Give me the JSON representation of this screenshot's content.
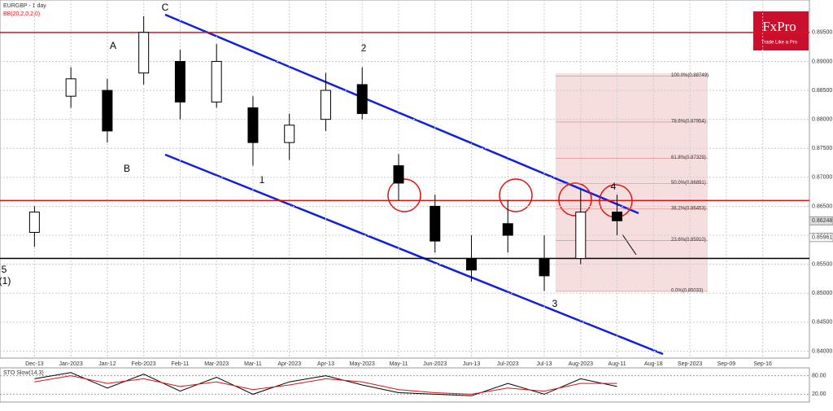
{
  "chart_data": {
    "type": "candlestick",
    "title": "EURGBP - 1 day",
    "subtitle": "BB(20,2,0,2,0)",
    "logo": "FxPro",
    "tagline": "Trade Like a Pro",
    "categories": [
      "Dec-13",
      "Jan-2023",
      "Jan-12",
      "Feb-2023",
      "Feb-11",
      "Mar-2023",
      "Mar-11",
      "Apr-2023",
      "Apr-13",
      "May-2023",
      "May-11",
      "Jun-2023",
      "Jun-13",
      "Jul-2023",
      "Jul-13",
      "Aug-2023",
      "Aug-11",
      "Aug-18",
      "Sep-2023",
      "Sep-09",
      "Sep-16"
    ],
    "series": [
      {
        "name": "EURGBP",
        "color": "#000000",
        "open": [
          0.8605,
          0.884,
          0.885,
          0.888,
          0.89,
          0.883,
          0.882,
          0.876,
          0.88,
          0.886,
          0.872,
          0.865,
          0.856,
          0.862,
          0.856,
          0.856,
          0.864,
          null,
          null,
          null,
          null
        ],
        "high": [
          0.865,
          0.889,
          0.887,
          0.8978,
          0.892,
          0.893,
          0.884,
          0.881,
          0.888,
          0.889,
          0.874,
          0.867,
          0.86,
          0.866,
          0.86,
          0.868,
          0.867,
          null,
          null,
          null,
          null
        ],
        "low": [
          0.858,
          0.882,
          0.876,
          0.886,
          0.88,
          0.882,
          0.872,
          0.873,
          0.878,
          0.88,
          0.866,
          0.857,
          0.852,
          0.857,
          0.8504,
          0.855,
          0.86,
          null,
          null,
          null,
          null
        ],
        "close": [
          0.864,
          0.887,
          0.878,
          0.895,
          0.883,
          0.89,
          0.876,
          0.879,
          0.885,
          0.881,
          0.869,
          0.859,
          0.854,
          0.86,
          0.853,
          0.864,
          0.8625,
          null,
          null,
          null,
          null
        ]
      }
    ],
    "ylim": [
      0.8388,
      0.9006
    ],
    "yticks": [
      {
        "value": 0.895,
        "label": "0.89500"
      },
      {
        "value": 0.89,
        "label": "0.89000"
      },
      {
        "value": 0.885,
        "label": "0.88500"
      },
      {
        "value": 0.88,
        "label": "0.88000"
      },
      {
        "value": 0.875,
        "label": "0.87500"
      },
      {
        "value": 0.87,
        "label": "0.87000"
      },
      {
        "value": 0.865,
        "label": "0.86500"
      },
      {
        "value": 0.86,
        "label": "0.86000"
      },
      {
        "value": 0.855,
        "label": "0.85500"
      },
      {
        "value": 0.85,
        "label": "0.85000"
      },
      {
        "value": 0.845,
        "label": "0.84500"
      },
      {
        "value": 0.84,
        "label": "0.84000"
      }
    ],
    "price_labels": [
      {
        "value": 0.86248,
        "label": "0.86248"
      },
      {
        "value": 0.85961,
        "label": "0.85961"
      }
    ],
    "levels": [
      {
        "value": 0.895,
        "color": "#e01010"
      },
      {
        "value": 0.866,
        "color": "#e01010"
      },
      {
        "value": 0.856,
        "color": "#000000"
      }
    ],
    "fib_levels": [
      {
        "value": 0.88749,
        "label": "100.0%(0.88749)"
      },
      {
        "value": 0.87954,
        "label": "78.6%(0.87954)"
      },
      {
        "value": 0.87329,
        "label": "61.8%(0.87329)"
      },
      {
        "value": 0.86891,
        "label": "50.0%(0.86891)"
      },
      {
        "value": 0.86453,
        "label": "38.2%(0.86453)"
      },
      {
        "value": 0.8591,
        "label": "23.6%(0.85910)"
      },
      {
        "value": 0.85033,
        "label": "0.0%(0.85033)"
      }
    ],
    "wave_labels": [
      "C",
      "A",
      "B",
      "1",
      "2",
      "3",
      "4",
      "5",
      "(1)"
    ],
    "oscillator": {
      "title": "STO Slow(14,3)",
      "ylim": [
        0,
        100
      ],
      "yticks": [
        {
          "value": 80,
          "label": "80.00"
        },
        {
          "value": 20,
          "label": "20.00"
        }
      ],
      "series": [
        {
          "name": "%K",
          "color": "#000000",
          "values": [
            70,
            90,
            40,
            85,
            30,
            75,
            20,
            60,
            80,
            50,
            25,
            20,
            15,
            55,
            20,
            70,
            45,
            null,
            null,
            null,
            null
          ]
        },
        {
          "name": "%D",
          "color": "#e01010",
          "values": [
            60,
            80,
            55,
            70,
            45,
            60,
            35,
            50,
            70,
            60,
            35,
            25,
            20,
            40,
            30,
            55,
            55,
            null,
            null,
            null,
            null
          ]
        }
      ]
    }
  }
}
